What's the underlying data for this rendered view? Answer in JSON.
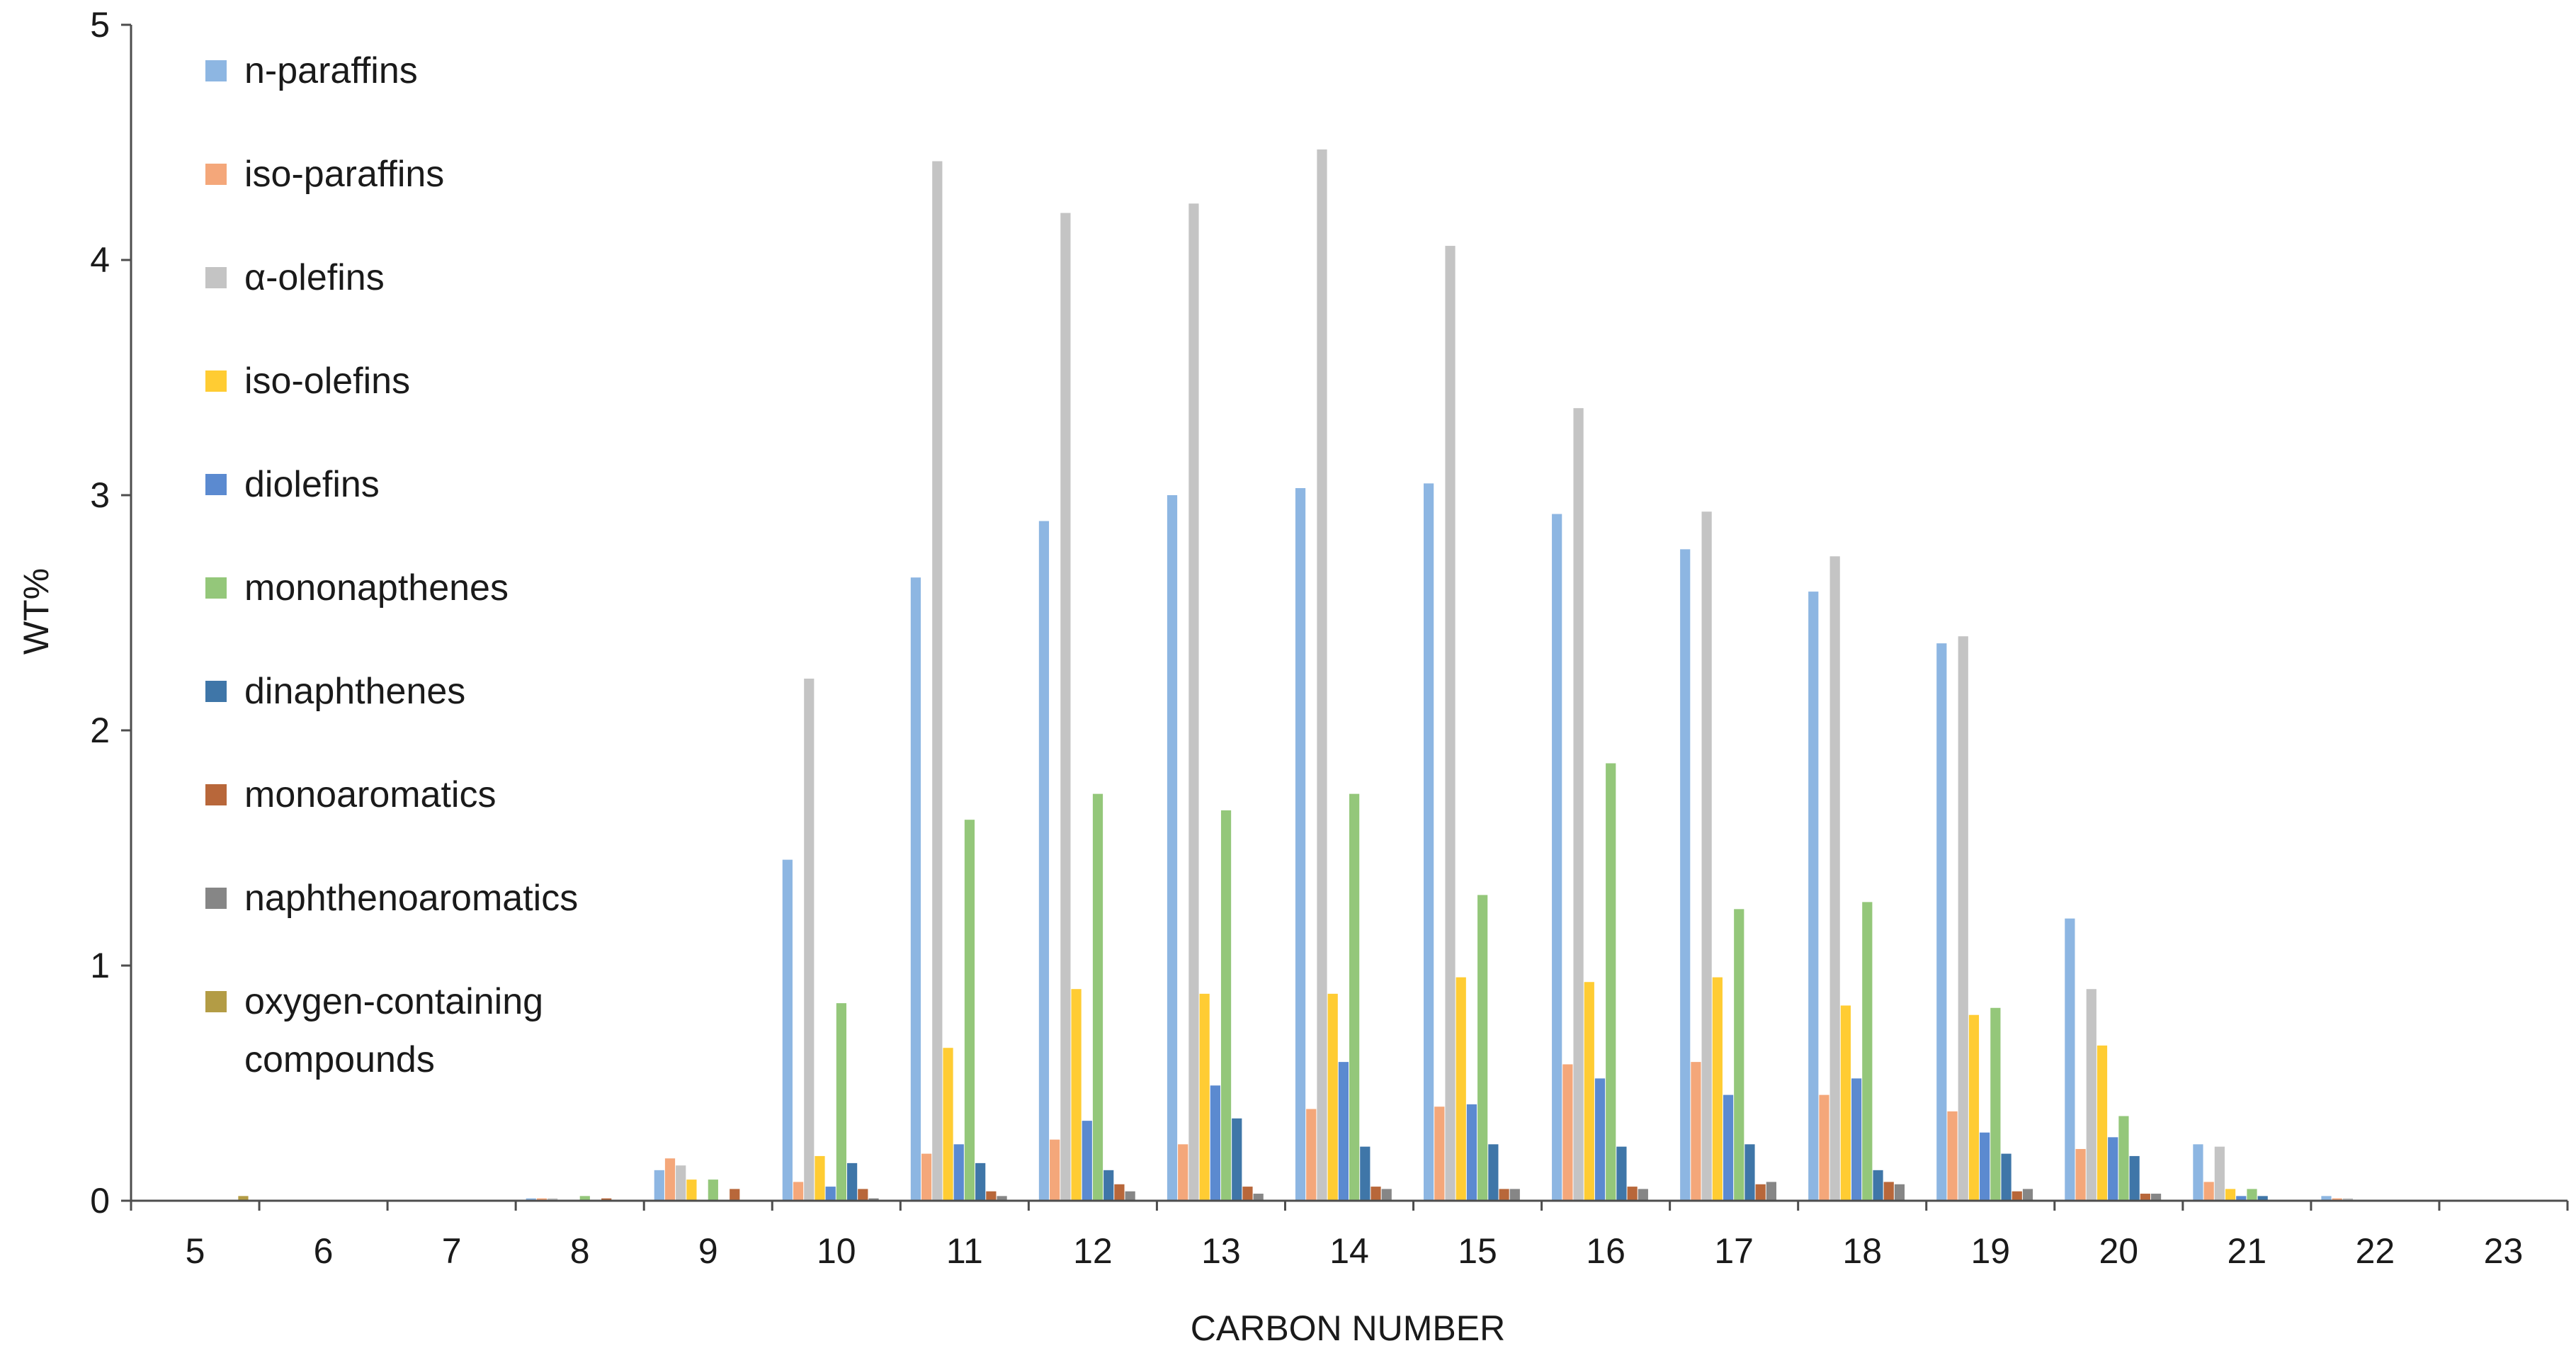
{
  "chart_data": {
    "type": "bar",
    "title": "",
    "xlabel": "CARBON NUMBER",
    "ylabel": "WT%",
    "ylim": [
      0,
      5
    ],
    "yticks": [
      "0",
      "1",
      "2",
      "3",
      "4",
      "5"
    ],
    "grid": false,
    "legend_position": "top-left",
    "categories": [
      "5",
      "6",
      "7",
      "8",
      "9",
      "10",
      "11",
      "12",
      "13",
      "14",
      "15",
      "16",
      "17",
      "18",
      "19",
      "20",
      "21",
      "22",
      "23"
    ],
    "series": [
      {
        "name": "n-paraffins",
        "color": "#8DB6E2",
        "values": [
          0,
          0,
          0,
          0.01,
          0.13,
          1.45,
          2.65,
          2.89,
          3.0,
          3.03,
          3.05,
          2.92,
          2.77,
          2.59,
          2.37,
          1.2,
          0.24,
          0.02,
          0
        ]
      },
      {
        "name": "iso-paraffins",
        "color": "#F4A77A",
        "values": [
          0,
          0,
          0,
          0.01,
          0.18,
          0.08,
          0.2,
          0.26,
          0.24,
          0.39,
          0.4,
          0.58,
          0.59,
          0.45,
          0.38,
          0.22,
          0.08,
          0.01,
          0
        ]
      },
      {
        "name": "α-olefins",
        "color": "#C4C4C4",
        "values": [
          0,
          0,
          0,
          0.01,
          0.15,
          2.22,
          4.42,
          4.2,
          4.24,
          4.47,
          4.06,
          3.37,
          2.93,
          2.74,
          2.4,
          0.9,
          0.23,
          0.01,
          0
        ]
      },
      {
        "name": "iso-olefins",
        "color": "#FFCC33",
        "values": [
          0,
          0,
          0,
          0,
          0.09,
          0.19,
          0.65,
          0.9,
          0.88,
          0.88,
          0.95,
          0.93,
          0.95,
          0.83,
          0.79,
          0.66,
          0.05,
          0,
          0
        ]
      },
      {
        "name": "diolefins",
        "color": "#5B8AD0",
        "values": [
          0,
          0,
          0,
          0,
          0,
          0.06,
          0.24,
          0.34,
          0.49,
          0.59,
          0.41,
          0.52,
          0.45,
          0.52,
          0.29,
          0.27,
          0.02,
          0,
          0
        ]
      },
      {
        "name": "mononapthenes",
        "color": "#94C77A",
        "values": [
          0,
          0,
          0,
          0.02,
          0.09,
          0.84,
          1.62,
          1.73,
          1.66,
          1.73,
          1.3,
          1.86,
          1.24,
          1.27,
          0.82,
          0.36,
          0.05,
          0,
          0
        ]
      },
      {
        "name": "dinaphthenes",
        "color": "#3F76A8",
        "values": [
          0,
          0,
          0,
          0,
          0,
          0.16,
          0.16,
          0.13,
          0.35,
          0.23,
          0.24,
          0.23,
          0.24,
          0.13,
          0.2,
          0.19,
          0.02,
          0,
          0
        ]
      },
      {
        "name": "monoaromatics",
        "color": "#B8673A",
        "values": [
          0,
          0,
          0,
          0.01,
          0.05,
          0.05,
          0.04,
          0.07,
          0.06,
          0.06,
          0.05,
          0.06,
          0.07,
          0.08,
          0.04,
          0.03,
          0,
          0,
          0
        ]
      },
      {
        "name": "naphthenoaromatics",
        "color": "#868686",
        "values": [
          0,
          0,
          0,
          0,
          0,
          0.01,
          0.02,
          0.04,
          0.03,
          0.05,
          0.05,
          0.05,
          0.08,
          0.07,
          0.05,
          0.03,
          0,
          0,
          0
        ]
      },
      {
        "name": "oxygen-containing compounds",
        "color": "#B39C45",
        "values": [
          0.02,
          0,
          0,
          0,
          0,
          0,
          0,
          0,
          0,
          0,
          0,
          0,
          0,
          0,
          0,
          0,
          0,
          0,
          0
        ]
      }
    ]
  }
}
